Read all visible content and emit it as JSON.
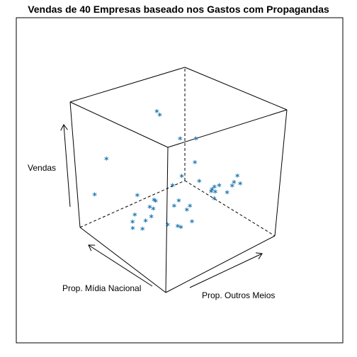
{
  "chart_data": {
    "type": "scatter3d",
    "title": "Vendas de 40 Empresas baseado nos Gastos com Propagandas",
    "xlabel": "Prop. Mídia Nacional",
    "ylabel": "Prop. Outros Meios",
    "zlabel": "Vendas",
    "point_symbol": "*",
    "point_color": "#1f77b4",
    "box": true,
    "grid": false,
    "points": [
      {
        "x": 1.0,
        "y": 0.23,
        "z": 0.46
      },
      {
        "x": 0.82,
        "y": 0.54,
        "z": 0.18
      },
      {
        "x": 0.55,
        "y": 0.28,
        "z": 0.73
      },
      {
        "x": 0.55,
        "y": 0.51,
        "z": 0.68
      },
      {
        "x": 0.45,
        "y": 0.53,
        "z": 0.69
      },
      {
        "x": 0.59,
        "y": 0.71,
        "z": 0.61
      },
      {
        "x": 0.65,
        "y": 0.37,
        "z": 0.73
      },
      {
        "x": 0.44,
        "y": 0.7,
        "z": 0.63
      },
      {
        "x": 0.67,
        "y": 0.39,
        "z": 0.68
      },
      {
        "x": 0.43,
        "y": 0.72,
        "z": 0.6
      },
      {
        "x": 0.61,
        "y": 0.5,
        "z": 0.59
      },
      {
        "x": 0.86,
        "y": 0.03,
        "z": 0.61
      },
      {
        "x": 0.79,
        "y": 0.82,
        "z": 0.57
      },
      {
        "x": 0.57,
        "y": 0.28,
        "z": 0.67
      },
      {
        "x": 0.55,
        "y": 0.14,
        "z": 0.68
      },
      {
        "x": 0.88,
        "y": 0.56,
        "z": 0.18
      },
      {
        "x": 0.52,
        "y": 0.1,
        "z": 0.71
      },
      {
        "x": 0.45,
        "y": 0.05,
        "z": 0.72
      },
      {
        "x": 0.38,
        "y": 0.08,
        "z": 0.71
      },
      {
        "x": 0.36,
        "y": 0.09,
        "z": 0.65
      },
      {
        "x": 0.28,
        "y": 0.27,
        "z": 0.57
      },
      {
        "x": 0.34,
        "y": 0.87,
        "z": 0.59
      },
      {
        "x": 0.19,
        "y": 0.15,
        "z": 0.64
      },
      {
        "x": 0.32,
        "y": 0.83,
        "z": 0.52
      },
      {
        "x": 0.31,
        "y": 0.4,
        "z": 0.64
      },
      {
        "x": 0.31,
        "y": 0.67,
        "z": 0.54
      },
      {
        "x": 0.09,
        "y": 0.16,
        "z": 0.62
      },
      {
        "x": 0.08,
        "y": 0.18,
        "z": 0.63
      },
      {
        "x": 0.09,
        "y": 0.28,
        "z": 0.62
      },
      {
        "x": 0.25,
        "y": 0.09,
        "z": 0.48
      },
      {
        "x": 0.18,
        "y": 0.54,
        "z": 0.51
      },
      {
        "x": 0.14,
        "y": 0.61,
        "z": 0.52
      },
      {
        "x": 0.17,
        "y": 0.69,
        "z": 0.48
      },
      {
        "x": 0.11,
        "y": 0.48,
        "z": 0.52
      },
      {
        "x": 0.07,
        "y": 0.6,
        "z": 0.45
      },
      {
        "x": 0.07,
        "y": 0.43,
        "z": 0.43
      },
      {
        "x": 0.35,
        "y": 0.01,
        "z": 0.45
      },
      {
        "x": 0.08,
        "y": 0.18,
        "z": 0.28
      },
      {
        "x": 0.09,
        "y": 0.17,
        "z": 0.02
      },
      {
        "x": 0.06,
        "y": 0.28,
        "z": 0.04
      }
    ]
  }
}
